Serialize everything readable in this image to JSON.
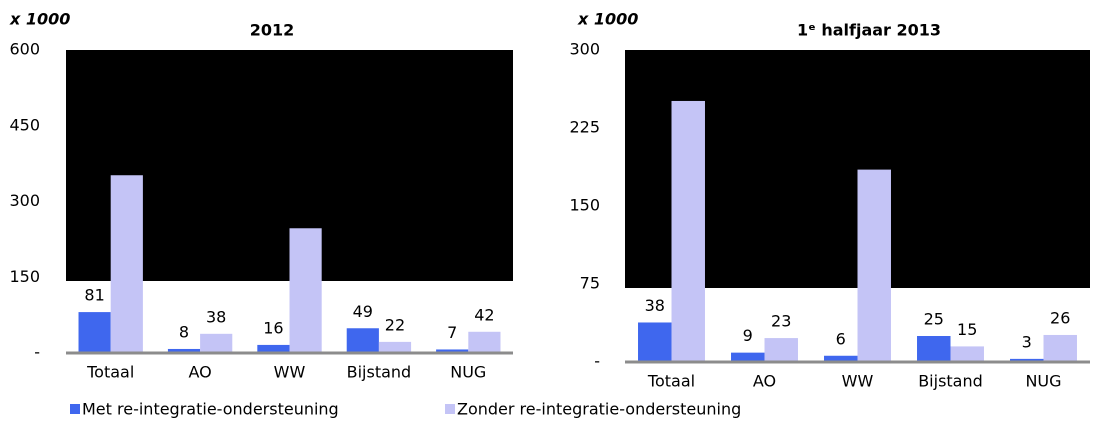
{
  "chart_data": [
    {
      "type": "bar",
      "title": "2012",
      "ylabel": "x 1000",
      "categories": [
        "Totaal",
        "AO",
        "WW",
        "Bijstand",
        "NUG"
      ],
      "series": [
        {
          "name": "Met re-integratie-ondersteuning",
          "color": "#3f67ee",
          "values": [
            81,
            8,
            16,
            49,
            7
          ]
        },
        {
          "name": "Zonder re-integratie-ondersteuning",
          "color": "#c4c4f6",
          "values": [
            352,
            38,
            247,
            22,
            42
          ]
        }
      ],
      "ylim": [
        0,
        600
      ],
      "yticks": [
        {
          "value": 0,
          "label": "-"
        },
        150,
        300,
        450,
        600
      ]
    },
    {
      "type": "bar",
      "title": "1ᵉ halfjaar 2013",
      "ylabel": "x 1000",
      "categories": [
        "Totaal",
        "AO",
        "WW",
        "Bijstand",
        "NUG"
      ],
      "series": [
        {
          "name": "Met re-integratie-ondersteuning",
          "color": "#3f67ee",
          "values": [
            38,
            9,
            6,
            25,
            3
          ]
        },
        {
          "name": "Zonder re-integratie-ondersteuning",
          "color": "#c4c4f6",
          "values": [
            251,
            23,
            185,
            15,
            26
          ]
        }
      ],
      "ylim": [
        0,
        300
      ],
      "yticks": [
        {
          "value": 0,
          "label": "-"
        },
        75,
        150,
        225,
        300
      ]
    }
  ]
}
